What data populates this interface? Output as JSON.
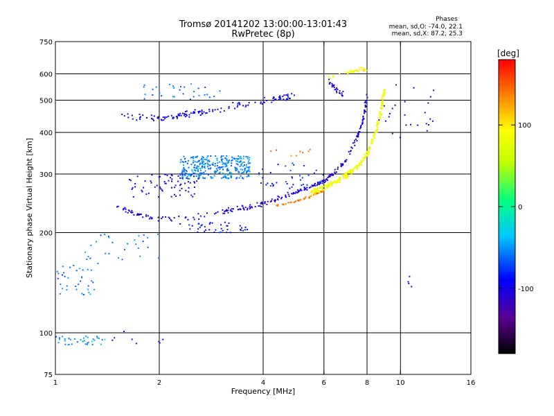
{
  "chart_data": {
    "type": "scatter",
    "title": "Tromsø 20141202 13:00:00-13:01:43",
    "subtitle": "RwPretec (8p)",
    "xlabel": "Frequency [MHz]",
    "ylabel": "Stationary phase Virtual Height [km]",
    "x_scale": "log",
    "y_scale": "log",
    "xlim": [
      1,
      16
    ],
    "ylim": [
      75,
      750
    ],
    "x_ticks": [
      1,
      2,
      4,
      6,
      8,
      10,
      16
    ],
    "y_ticks": [
      75,
      100,
      200,
      300,
      400,
      500,
      600,
      750
    ],
    "x_gridlines": [
      2,
      4,
      6,
      8,
      10
    ],
    "y_gridlines": [
      100,
      200,
      300,
      400,
      500,
      600
    ],
    "grid": true,
    "legend": {
      "title": "Phases",
      "lines": [
        "mean, sd,O: -74.0, 22.1",
        "mean, sd,X:  87.2, 25.3"
      ],
      "placement": "top-right"
    },
    "colorbar": {
      "label": "[deg]",
      "min": -180,
      "max": 180,
      "ticks": [
        100,
        0,
        -100
      ],
      "colors": [
        "#000000",
        "#5a0090",
        "#0000ff",
        "#00c8ff",
        "#00ff80",
        "#c0ff00",
        "#ffff00",
        "#ff8000",
        "#ff0000"
      ]
    },
    "series": [
      {
        "type": "curve",
        "points": [
          [
            1.55,
            450
          ],
          [
            2,
            440
          ],
          [
            2.5,
            455
          ],
          [
            3,
            470
          ],
          [
            4,
            495
          ],
          [
            5,
            520
          ]
        ],
        "phase": -95,
        "density": 130,
        "spread": 0.035
      },
      {
        "type": "curve",
        "points": [
          [
            1.5,
            240
          ],
          [
            1.7,
            228
          ],
          [
            2,
            220
          ],
          [
            2.5,
            222
          ],
          [
            3,
            230
          ],
          [
            3.5,
            237
          ],
          [
            4,
            245
          ],
          [
            4.5,
            255
          ],
          [
            5,
            265
          ],
          [
            5.5,
            275
          ],
          [
            6,
            285
          ],
          [
            6.5,
            305
          ],
          [
            7,
            335
          ],
          [
            7.5,
            385
          ],
          [
            7.8,
            440
          ],
          [
            8,
            520
          ]
        ],
        "phase": -105,
        "density": 260,
        "spread": 0.025
      },
      {
        "type": "curve",
        "points": [
          [
            4.3,
            240
          ],
          [
            5,
            248
          ],
          [
            5.5,
            258
          ],
          [
            6,
            268
          ]
        ],
        "phase": 140,
        "density": 60,
        "spread": 0.012
      },
      {
        "type": "curve",
        "points": [
          [
            5.5,
            265
          ],
          [
            6,
            272
          ],
          [
            6.5,
            285
          ],
          [
            7,
            298
          ],
          [
            7.5,
            315
          ],
          [
            8,
            345
          ],
          [
            8.5,
            400
          ],
          [
            8.8,
            470
          ],
          [
            9,
            540
          ]
        ],
        "phase": 85,
        "density": 280,
        "spread": 0.03
      },
      {
        "type": "curve",
        "points": [
          [
            6.2,
            580
          ],
          [
            6.8,
            600
          ],
          [
            7.3,
            610
          ],
          [
            8,
            620
          ]
        ],
        "phase": 90,
        "density": 40,
        "spread": 0.03
      },
      {
        "type": "curve",
        "points": [
          [
            6.2,
            570
          ],
          [
            6.5,
            540
          ],
          [
            6.8,
            520
          ]
        ],
        "phase": -110,
        "density": 25,
        "spread": 0.03
      },
      {
        "type": "blob",
        "x": [
          2.3,
          3.7
        ],
        "y": [
          290,
          340
        ],
        "phase": -55,
        "density": 320
      },
      {
        "type": "blob",
        "x": [
          1.6,
          2.6
        ],
        "y": [
          255,
          300
        ],
        "phase": -100,
        "density": 70
      },
      {
        "type": "blob",
        "x": [
          2.3,
          3.6
        ],
        "y": [
          200,
          215
        ],
        "phase": -90,
        "density": 40
      },
      {
        "type": "blob",
        "x": [
          1.0,
          1.4
        ],
        "y": [
          92,
          98
        ],
        "phase": -50,
        "density": 35
      },
      {
        "type": "blob",
        "x": [
          1.0,
          1.3
        ],
        "y": [
          130,
          160
        ],
        "phase": -55,
        "density": 35
      },
      {
        "type": "blob",
        "x": [
          1.2,
          2.0
        ],
        "y": [
          160,
          200
        ],
        "phase": -55,
        "density": 30
      },
      {
        "type": "blob",
        "x": [
          3.8,
          6.0
        ],
        "y": [
          270,
          330
        ],
        "phase": -80,
        "density": 40
      },
      {
        "type": "blob",
        "x": [
          4.0,
          5.5
        ],
        "y": [
          300,
          360
        ],
        "phase": 150,
        "density": 8
      },
      {
        "type": "blob",
        "x": [
          1.8,
          3.0
        ],
        "y": [
          500,
          560
        ],
        "phase": -60,
        "density": 30
      },
      {
        "type": "blob",
        "x": [
          8.5,
          12.5
        ],
        "y": [
          380,
          560
        ],
        "phase": -110,
        "density": 25
      },
      {
        "type": "blob",
        "x": [
          10.5,
          10.8
        ],
        "y": [
          135,
          150
        ],
        "phase": -110,
        "density": 4
      },
      {
        "type": "blob",
        "x": [
          1.4,
          2.1
        ],
        "y": [
          92,
          102
        ],
        "phase": -100,
        "density": 8
      }
    ]
  }
}
